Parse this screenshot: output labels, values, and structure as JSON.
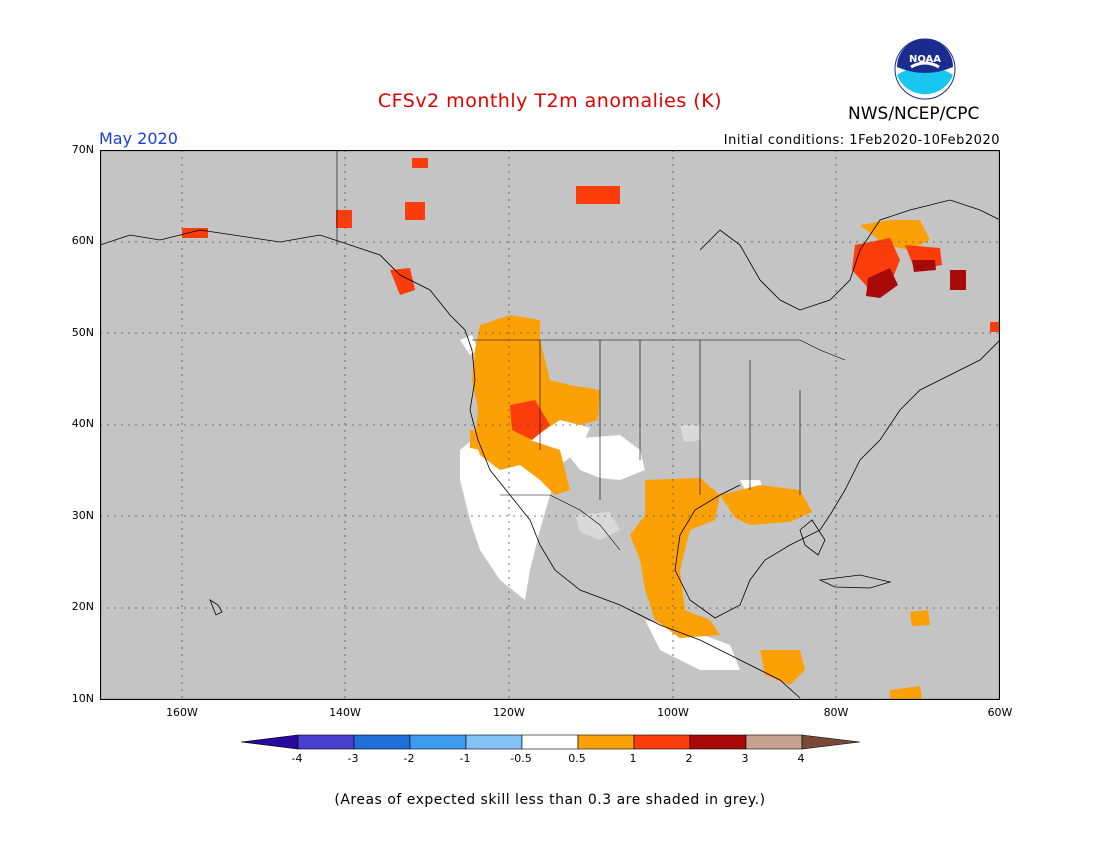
{
  "header": {
    "title": "CFSv2 monthly T2m anomalies (K)",
    "organization": "NWS/NCEP/CPC",
    "period": "May 2020",
    "initial_conditions": "Initial conditions: 1Feb2020-10Feb2020"
  },
  "map": {
    "projection": "lat-lon",
    "lon_range": [
      -170,
      -60
    ],
    "lat_range": [
      10,
      70
    ],
    "background_color": "#c4c4c4",
    "lat_labels": [
      "70N",
      "60N",
      "50N",
      "40N",
      "30N",
      "20N",
      "10N"
    ],
    "lon_labels": [
      "160W",
      "140W",
      "120W",
      "100W",
      "80W",
      "60W"
    ],
    "grid": true
  },
  "colorbar": {
    "labels": [
      "-4",
      "-3",
      "-2",
      "-1",
      "-0.5",
      "0.5",
      "1",
      "2",
      "3",
      "4"
    ],
    "colors": [
      "#2a0a9c",
      "#4b3fd0",
      "#1f6fd6",
      "#3f9bf0",
      "#85c2f4",
      "#ffffff",
      "#fba105",
      "#fb3c0b",
      "#a80a0a",
      "#c8a290",
      "#7a4836"
    ]
  },
  "footnote": "(Areas of expected skill less than 0.3 are shaded in grey.)",
  "logo": {
    "text": "NOAA"
  },
  "anomaly_regions": [
    {
      "name": "western-us",
      "color": "#fba105"
    },
    {
      "name": "gulf-coast-mexico",
      "color": "#fba105"
    },
    {
      "name": "southwest-low-skill",
      "color": "#ffffff"
    },
    {
      "name": "quebec",
      "color": "#fb3c0b"
    }
  ]
}
